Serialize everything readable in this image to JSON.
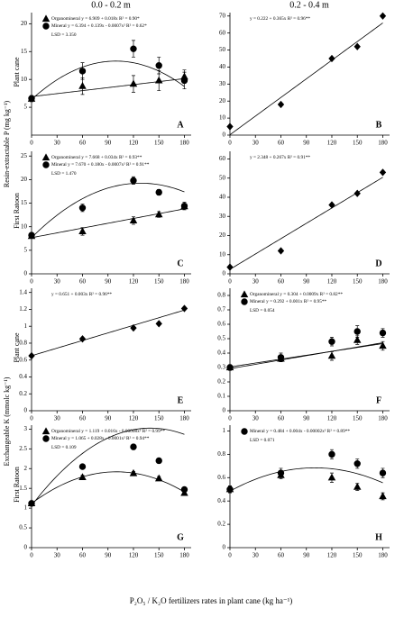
{
  "figure": {
    "column_titles": [
      "0.0 - 0.2 m",
      "0.2 - 0.4 m"
    ],
    "row_labels": [
      "Plant cane",
      "First Ratoon",
      "Plant cane",
      "First Ratoon"
    ],
    "y_labels": [
      "Resin-extractable P (mg kg⁻¹)",
      "Exchangeable K (mmolc kg⁻¹)"
    ],
    "x_label": "P₂O₅ / K₂O fertilizers rates in plant cane (kg ha⁻¹)"
  },
  "chart_data": [
    {
      "type": "scatter",
      "panel": "A",
      "x": [
        0,
        60,
        120,
        150,
        180
      ],
      "xlim": [
        0,
        188
      ],
      "xticks": [
        0,
        30,
        60,
        90,
        120,
        150,
        180
      ],
      "ylim": [
        0,
        22
      ],
      "yticks": [
        5,
        10,
        15,
        20
      ],
      "lsd": "LSD = 3.350",
      "series": [
        {
          "name": "Organomineral",
          "marker": "triangle",
          "color": "#000000",
          "values": [
            6.5,
            8.8,
            9.2,
            9.8,
            10.5
          ],
          "errors": [
            0.5,
            1.5,
            1.5,
            1.8,
            1.2
          ],
          "fit": [
            6.909,
            0.018
          ],
          "equation": "y = 6.909 + 0.018x R² = 0.90*"
        },
        {
          "name": "Mineral",
          "marker": "circle",
          "color": "#000000",
          "values": [
            6.6,
            11.5,
            15.5,
            12.5,
            9.8
          ],
          "errors": [
            0.5,
            1.5,
            1.5,
            1.5,
            1.5
          ],
          "fit": [
            6.394,
            0.139,
            -0.0007
          ],
          "equation": "y = 6.394 + 0.139x - 0.0007x² R² = 0.62*"
        }
      ]
    },
    {
      "type": "scatter",
      "panel": "B",
      "x": [
        0,
        60,
        120,
        150,
        180
      ],
      "xlim": [
        0,
        188
      ],
      "xticks": [
        0,
        30,
        60,
        90,
        120,
        150,
        180
      ],
      "ylim": [
        0,
        72
      ],
      "yticks": [
        0,
        10,
        20,
        30,
        40,
        50,
        60,
        70
      ],
      "series": [
        {
          "marker": "diamond",
          "color": "#000000",
          "values": [
            5,
            18,
            45,
            52,
            70
          ],
          "fit": [
            0.222,
            0.365
          ],
          "equation": "y = 0.222 + 0.365x R² = 0.96**"
        }
      ]
    },
    {
      "type": "scatter",
      "panel": "C",
      "x": [
        0,
        60,
        120,
        150,
        180
      ],
      "xlim": [
        0,
        188
      ],
      "xticks": [
        0,
        30,
        60,
        90,
        120,
        150,
        180
      ],
      "ylim": [
        0,
        26
      ],
      "yticks": [
        0,
        5,
        10,
        15,
        20,
        25
      ],
      "lsd": "LSD = 1.470",
      "series": [
        {
          "name": "Organomineral",
          "marker": "triangle",
          "color": "#000000",
          "values": [
            8,
            9,
            11.3,
            12.6,
            14.3
          ],
          "errors": [
            0.3,
            0.8,
            0.8,
            0.6,
            0.5
          ],
          "fit": [
            7.668,
            0.034
          ],
          "equation": "y = 7.668 + 0.034x R² = 0.93**"
        },
        {
          "name": "Mineral",
          "marker": "circle",
          "color": "#000000",
          "values": [
            8.2,
            14,
            19.8,
            17.3,
            14.4
          ],
          "errors": [
            0.4,
            0.8,
            0.8,
            0.6,
            0.8
          ],
          "fit": [
            7.67,
            0.18,
            -0.0007
          ],
          "equation": "y = 7.670 + 0.180x - 0.0007x² R² = 0.91**"
        }
      ]
    },
    {
      "type": "scatter",
      "panel": "D",
      "x": [
        0,
        60,
        120,
        150,
        180
      ],
      "xlim": [
        0,
        188
      ],
      "xticks": [
        0,
        30,
        60,
        90,
        120,
        150,
        180
      ],
      "ylim": [
        0,
        64
      ],
      "yticks": [
        0,
        10,
        20,
        30,
        40,
        50,
        60
      ],
      "series": [
        {
          "marker": "diamond",
          "color": "#000000",
          "values": [
            3.5,
            12,
            36,
            42,
            53
          ],
          "fit": [
            2.348,
            0.267
          ],
          "equation": "y = 2.348 + 0.267x R² = 0.91**"
        }
      ]
    },
    {
      "type": "scatter",
      "panel": "E",
      "x": [
        0,
        60,
        120,
        150,
        180
      ],
      "xlim": [
        0,
        188
      ],
      "xticks": [
        0,
        30,
        60,
        90,
        120,
        150,
        180
      ],
      "ylim": [
        0,
        1.45
      ],
      "yticks": [
        0,
        0.2,
        0.4,
        0.6,
        0.8,
        1,
        1.2,
        1.4
      ],
      "series": [
        {
          "marker": "diamond",
          "color": "#000000",
          "values": [
            0.65,
            0.85,
            0.98,
            1.03,
            1.21
          ],
          "fit": [
            0.651,
            0.003
          ],
          "equation": "y = 0.651 + 0.003x R² = 0.96**"
        }
      ]
    },
    {
      "type": "scatter",
      "panel": "F",
      "x": [
        0,
        60,
        120,
        150,
        180
      ],
      "xlim": [
        0,
        188
      ],
      "xticks": [
        0,
        30,
        60,
        90,
        120,
        150,
        180
      ],
      "ylim": [
        0,
        0.85
      ],
      "yticks": [
        0,
        0.1,
        0.2,
        0.3,
        0.4,
        0.5,
        0.6,
        0.7,
        0.8
      ],
      "lsd": "LSD = 0.054",
      "series": [
        {
          "name": "Organomineral",
          "marker": "triangle",
          "color": "#000000",
          "values": [
            0.3,
            0.36,
            0.38,
            0.49,
            0.45
          ],
          "errors": [
            0.02,
            0.02,
            0.03,
            0.03,
            0.03
          ],
          "fit": [
            0.304,
            0.0009
          ],
          "equation": "y = 0.304 + 0.0009x R² = 0.82**"
        },
        {
          "name": "Mineral",
          "marker": "circle",
          "color": "#000000",
          "values": [
            0.3,
            0.37,
            0.48,
            0.55,
            0.54
          ],
          "errors": [
            0.02,
            0.03,
            0.03,
            0.04,
            0.03
          ],
          "fit": [
            0.292,
            0.001
          ],
          "equation": "y = 0.292 + 0.001x R² = 0.95**"
        }
      ]
    },
    {
      "type": "scatter",
      "panel": "G",
      "x": [
        0,
        60,
        120,
        150,
        180
      ],
      "xlim": [
        0,
        188
      ],
      "xticks": [
        0,
        30,
        60,
        90,
        120,
        150,
        180
      ],
      "ylim": [
        0,
        3.1
      ],
      "yticks": [
        0,
        0.5,
        1,
        1.5,
        2,
        2.5,
        3
      ],
      "lsd": "LSD = 0.109",
      "series": [
        {
          "name": "Organomineral",
          "marker": "triangle",
          "color": "#000000",
          "values": [
            1.12,
            1.78,
            1.88,
            1.75,
            1.38
          ],
          "errors": [
            0.05,
            0.05,
            0.05,
            0.05,
            0.05
          ],
          "fit": [
            1.119,
            0.016,
            -8e-05
          ],
          "equation": "y = 1.119 + 0.016x - 0.00008x² R² = 0.99**"
        },
        {
          "name": "Mineral",
          "marker": "circle",
          "color": "#000000",
          "values": [
            1.12,
            2.05,
            2.55,
            2.2,
            1.47
          ],
          "errors": [
            0.05,
            0.06,
            0.06,
            0.06,
            0.06
          ],
          "fit": [
            1.065,
            0.028,
            -0.0001
          ],
          "equation": "y = 1.065 + 0.028x - 0.0001x² R² = 0.94**"
        }
      ]
    },
    {
      "type": "scatter",
      "panel": "H",
      "x": [
        0,
        60,
        120,
        150,
        180
      ],
      "xlim": [
        0,
        188
      ],
      "xticks": [
        0,
        30,
        60,
        90,
        120,
        150,
        180
      ],
      "ylim": [
        0,
        1.05
      ],
      "yticks": [
        0,
        0.2,
        0.4,
        0.6,
        0.8,
        1
      ],
      "lsd": "LSD = 0.071",
      "series": [
        {
          "name": "Mineral",
          "marker": "circle",
          "color": "#000000",
          "values": [
            0.5,
            0.64,
            0.8,
            0.72,
            0.64
          ],
          "errors": [
            0.03,
            0.04,
            0.04,
            0.04,
            0.04
          ],
          "fit": [
            0.484,
            0.004,
            -2e-05
          ],
          "equation": "y = 0.484 + 0.004x - 0.00002x² R² = 0.89**"
        },
        {
          "marker": "triangle",
          "color": "#000000",
          "values": [
            0.5,
            0.62,
            0.6,
            0.52,
            0.44
          ],
          "errors": [
            0.03,
            0.03,
            0.04,
            0.03,
            0.03
          ]
        }
      ]
    }
  ]
}
